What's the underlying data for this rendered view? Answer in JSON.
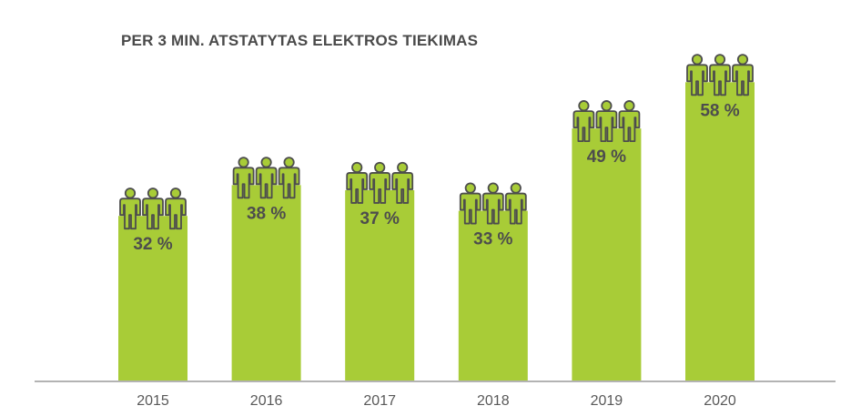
{
  "chart_data": {
    "type": "bar",
    "title": "PER 3 MIN. ATSTATYTAS ELEKTROS TIEKIMAS",
    "categories": [
      "2015",
      "2016",
      "2017",
      "2018",
      "2019",
      "2020"
    ],
    "values": [
      32,
      38,
      37,
      33,
      49,
      58
    ],
    "value_labels": [
      "32 %",
      "38 %",
      "37 %",
      "33 %",
      "49 %",
      "58 %"
    ],
    "bar_color": "#a8cc37",
    "icon": "three-people-icon",
    "icon_fill": "#a8cc37",
    "icon_stroke": "#4d4d4d",
    "grid": false,
    "legend": "none"
  }
}
